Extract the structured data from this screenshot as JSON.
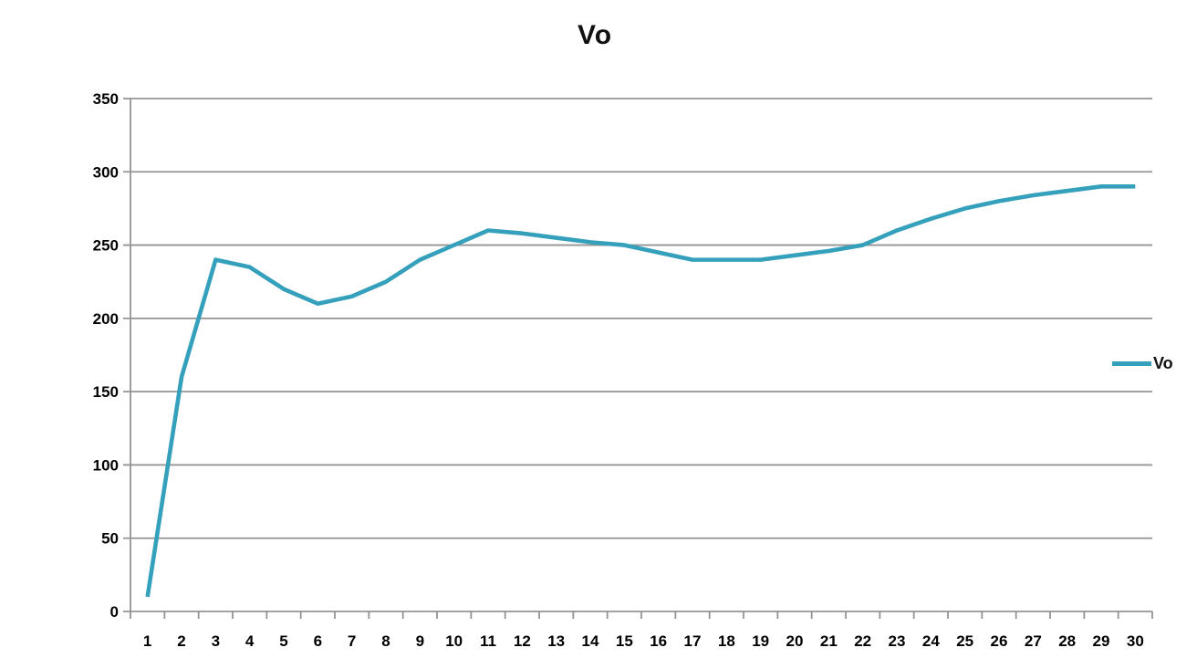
{
  "chart_data": {
    "type": "line",
    "title": "Vo",
    "xlabel": "",
    "ylabel": "",
    "x": [
      1,
      2,
      3,
      4,
      5,
      6,
      7,
      8,
      9,
      10,
      11,
      12,
      13,
      14,
      15,
      16,
      17,
      18,
      19,
      20,
      21,
      22,
      23,
      24,
      25,
      26,
      27,
      28,
      29,
      30
    ],
    "series": [
      {
        "name": "Vo",
        "color": "#35A0BC",
        "values": [
          10,
          160,
          240,
          235,
          220,
          210,
          215,
          225,
          240,
          250,
          260,
          258,
          255,
          252,
          250,
          245,
          240,
          240,
          240,
          243,
          246,
          250,
          260,
          268,
          275,
          280,
          284,
          287,
          290,
          290
        ]
      }
    ],
    "ylim": [
      0,
      350
    ],
    "ytick_step": 50,
    "yticks": [
      0,
      50,
      100,
      150,
      200,
      250,
      300,
      350
    ],
    "grid": "horizontal-only",
    "legend_position": "right",
    "colors": {
      "axis_and_grid": "#949494",
      "label_text": "#000000",
      "background": "#ffffff"
    }
  },
  "legend": {
    "label": "Vo"
  }
}
